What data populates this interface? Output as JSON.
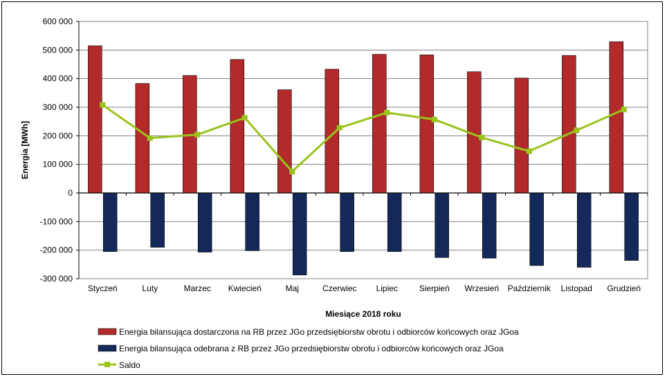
{
  "chart_data": {
    "type": "bar",
    "categories": [
      "Styczeń",
      "Luty",
      "Marzec",
      "Kwiecień",
      "Maj",
      "Czerwiec",
      "Lipiec",
      "Sierpień",
      "Wrzesień",
      "Październik",
      "Listopad",
      "Grudzień"
    ],
    "series": [
      {
        "name": "Energia bilansująca dostarczona na RB przez JGo przedsiębiorstw obrotu i odbiorców końcowych oraz JGoa",
        "kind": "bar",
        "color": "#b22a2a",
        "values": [
          515000,
          383000,
          411000,
          467000,
          361000,
          433000,
          485000,
          483000,
          424000,
          402000,
          481000,
          529000
        ]
      },
      {
        "name": "Energia bilansująca odebrana z RB przez JGo przedsiębiorstw obrotu i odbiorców końcowych oraz JGoa",
        "kind": "bar",
        "color": "#14285a",
        "values": [
          -205000,
          -190000,
          -207000,
          -202000,
          -287000,
          -205000,
          -205000,
          -226000,
          -228000,
          -254000,
          -260000,
          -236000
        ]
      },
      {
        "name": "Saldo",
        "kind": "line",
        "color": "#9ac31c",
        "values": [
          308000,
          192000,
          204000,
          263000,
          75000,
          228000,
          281000,
          257000,
          194000,
          146000,
          219000,
          292000
        ]
      }
    ],
    "ylim": [
      -300000,
      600000
    ],
    "yticks": [
      -300000,
      -200000,
      -100000,
      0,
      100000,
      200000,
      300000,
      400000,
      500000,
      600000
    ],
    "ytick_labels": [
      "-300 000",
      "-200 000",
      "-100 000",
      "0",
      "100 000",
      "200 000",
      "300 000",
      "400 000",
      "500 000",
      "600 000"
    ],
    "xlabel": "Miesiące 2018  roku",
    "ylabel": "Energia [MWh]",
    "grid": true,
    "legend_position": "bottom"
  }
}
